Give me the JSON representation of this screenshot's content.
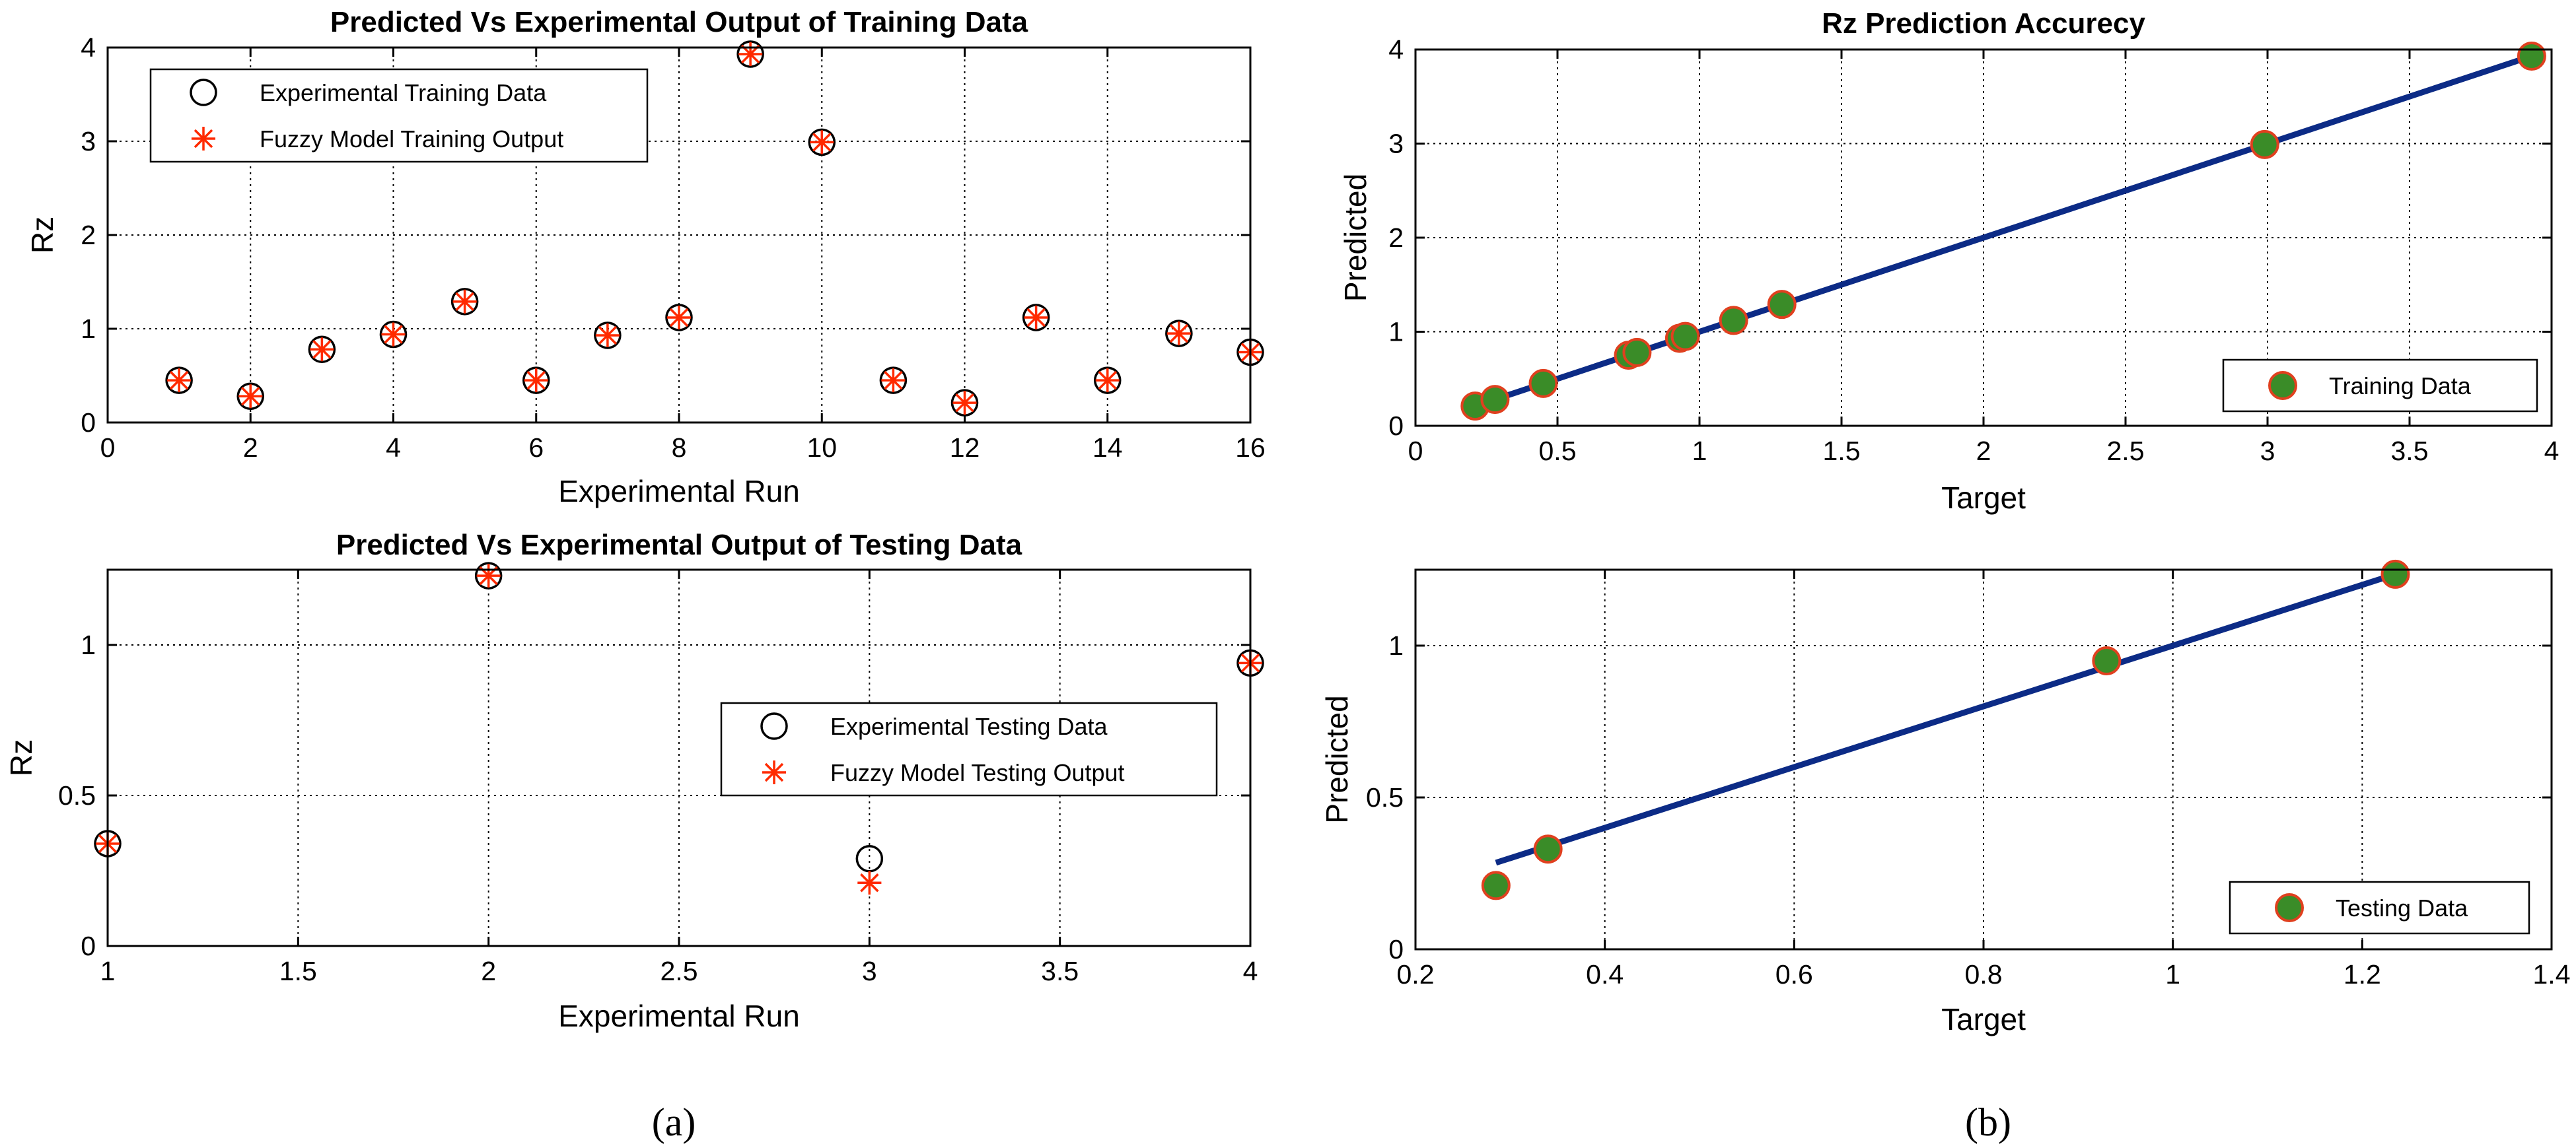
{
  "chart_data": [
    {
      "id": "a_top",
      "type": "scatter",
      "title": "Predicted Vs Experimental Output of Training Data",
      "xlabel": "Experimental Run",
      "ylabel": "Rz",
      "xlim": [
        0,
        16
      ],
      "ylim": [
        0,
        4
      ],
      "xticks": [
        0,
        2,
        4,
        6,
        8,
        10,
        12,
        14,
        16
      ],
      "yticks": [
        0,
        1,
        2,
        3,
        4
      ],
      "grid": true,
      "legend_position": "top-left",
      "series": [
        {
          "name": "Experimental Training Data",
          "marker": "circle",
          "x": [
            1,
            2,
            3,
            4,
            5,
            6,
            7,
            8,
            9,
            10,
            11,
            12,
            13,
            14,
            15,
            16
          ],
          "y": [
            0.45,
            0.28,
            0.78,
            0.94,
            1.29,
            0.45,
            0.93,
            1.12,
            3.93,
            2.99,
            0.45,
            0.21,
            1.12,
            0.45,
            0.95,
            0.75
          ]
        },
        {
          "name": "Fuzzy Model Training Output",
          "marker": "asterisk",
          "x": [
            1,
            2,
            3,
            4,
            5,
            6,
            7,
            8,
            9,
            10,
            11,
            12,
            13,
            14,
            15,
            16
          ],
          "y": [
            0.45,
            0.28,
            0.78,
            0.94,
            1.29,
            0.45,
            0.93,
            1.12,
            3.93,
            2.99,
            0.45,
            0.21,
            1.12,
            0.45,
            0.95,
            0.75
          ]
        }
      ]
    },
    {
      "id": "a_bottom",
      "type": "scatter",
      "title": "Predicted Vs Experimental Output of Testing Data",
      "xlabel": "Experimental Run",
      "ylabel": "Rz",
      "xlim": [
        1,
        4
      ],
      "ylim": [
        0,
        1.25
      ],
      "xticks": [
        1,
        1.5,
        2,
        2.5,
        3,
        3.5,
        4
      ],
      "yticks": [
        0,
        0.5,
        1
      ],
      "grid": true,
      "legend_position": "middle-right",
      "series": [
        {
          "name": "Experimental Testing Data",
          "marker": "circle",
          "x": [
            1,
            2,
            3,
            4
          ],
          "y": [
            0.34,
            1.23,
            0.29,
            0.94
          ]
        },
        {
          "name": "Fuzzy Model Testing Output",
          "marker": "asterisk",
          "x": [
            1,
            2,
            3,
            4
          ],
          "y": [
            0.34,
            1.23,
            0.21,
            0.94
          ]
        }
      ]
    },
    {
      "id": "b_top",
      "type": "scatter",
      "title": "Rz Prediction Accurecy",
      "xlabel": "Target",
      "ylabel": "Predicted",
      "xlim": [
        0,
        4
      ],
      "ylim": [
        0,
        4
      ],
      "xticks": [
        0,
        0.5,
        1,
        1.5,
        2,
        2.5,
        3,
        3.5,
        4
      ],
      "yticks": [
        0,
        1,
        2,
        3,
        4
      ],
      "grid": true,
      "legend_position": "bottom-right",
      "fit_line": {
        "x": [
          0.21,
          3.93
        ],
        "y": [
          0.21,
          3.93
        ]
      },
      "series": [
        {
          "name": "Training Data",
          "marker": "filled-circle",
          "x": [
            0.21,
            0.28,
            0.45,
            0.75,
            0.78,
            0.93,
            0.95,
            1.12,
            1.29,
            2.99,
            3.93
          ],
          "y": [
            0.21,
            0.28,
            0.45,
            0.75,
            0.78,
            0.93,
            0.95,
            1.12,
            1.29,
            2.99,
            3.93
          ]
        }
      ]
    },
    {
      "id": "b_bottom",
      "type": "scatter",
      "title": "",
      "xlabel": "Target",
      "ylabel": "Predicted",
      "xlim": [
        0.2,
        1.4
      ],
      "ylim": [
        0,
        1.25
      ],
      "xticks": [
        0.2,
        0.4,
        0.6,
        0.8,
        1,
        1.2,
        1.4
      ],
      "yticks": [
        0,
        0.5,
        1
      ],
      "grid": true,
      "legend_position": "bottom-right",
      "fit_line": {
        "x": [
          0.285,
          1.235
        ],
        "y": [
          0.285,
          1.235
        ]
      },
      "series": [
        {
          "name": "Testing Data",
          "marker": "filled-circle",
          "x": [
            0.285,
            0.34,
            0.93,
            1.235
          ],
          "y": [
            0.21,
            0.33,
            0.95,
            1.235
          ]
        }
      ]
    }
  ],
  "captions": {
    "left": "(a)",
    "right": "(b)"
  },
  "colors": {
    "circle_stroke": "#000000",
    "asterisk": "#ff2a00",
    "fill_green": "#3a8c28",
    "fill_stroke": "#e0401f",
    "fit_line": "#0c2b86",
    "grid": "#000000"
  }
}
